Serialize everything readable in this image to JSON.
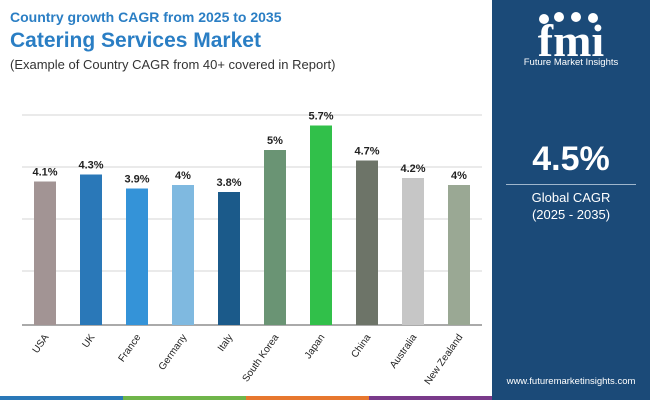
{
  "header": {
    "subtitle": "Country growth CAGR from 2025 to 2035",
    "title": "Catering Services Market",
    "note": "(Example of Country CAGR from 40+ covered in Report)"
  },
  "chart_data": {
    "type": "bar",
    "categories": [
      "USA",
      "UK",
      "France",
      "Germany",
      "Italy",
      "South Korea",
      "Japan",
      "China",
      "Australia",
      "New Zealand"
    ],
    "values": [
      4.1,
      4.3,
      3.9,
      4.0,
      3.8,
      5.0,
      5.7,
      4.7,
      4.2,
      4.0
    ],
    "labels": [
      "4.1%",
      "4.3%",
      "3.9%",
      "4%",
      "3.8%",
      "5%",
      "5.7%",
      "4.7%",
      "4.2%",
      "4%"
    ],
    "colors": [
      "#a29494",
      "#2a78b8",
      "#3493d8",
      "#7fb9e0",
      "#1b5a8a",
      "#6a9474",
      "#31c04a",
      "#6d7468",
      "#c6c6c6",
      "#9aa894"
    ],
    "title": "",
    "xlabel": "",
    "ylabel": "",
    "ylim": [
      0,
      6
    ],
    "grid": true
  },
  "side_panel": {
    "logo_text": "fmi",
    "logo_subtitle": "Future Market Insights",
    "global_value": "4.5%",
    "global_label": "Global CAGR",
    "global_range": "(2025 - 2035)",
    "website": "www.futuremarketinsights.com",
    "background": "#1b4a78"
  },
  "footer_colors": [
    "#2a78b8",
    "#6fb54a",
    "#e7772e",
    "#7a3a8a"
  ]
}
